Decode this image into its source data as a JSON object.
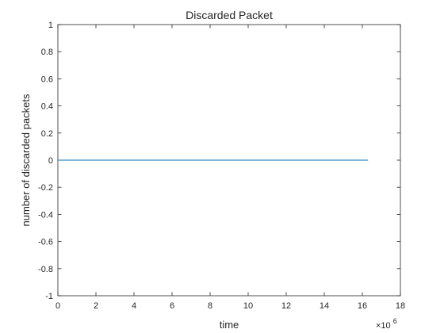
{
  "chart_data": {
    "type": "line",
    "title": "Discarded Packet",
    "xlabel": "time",
    "ylabel": "number of discarded packets",
    "x_multiplier": {
      "base": "×10",
      "exponent": "6"
    },
    "xlim": [
      0,
      18
    ],
    "ylim": [
      -1,
      1
    ],
    "xticks": [
      0,
      2,
      4,
      6,
      8,
      10,
      12,
      14,
      16,
      18
    ],
    "yticks": [
      -1,
      -0.8,
      -0.6,
      -0.4,
      -0.2,
      0,
      0.2,
      0.4,
      0.6,
      0.8,
      1
    ],
    "grid": false,
    "series": [
      {
        "x": [
          0,
          16.3
        ],
        "y": [
          0,
          0
        ],
        "color": "#0072bd"
      }
    ]
  }
}
